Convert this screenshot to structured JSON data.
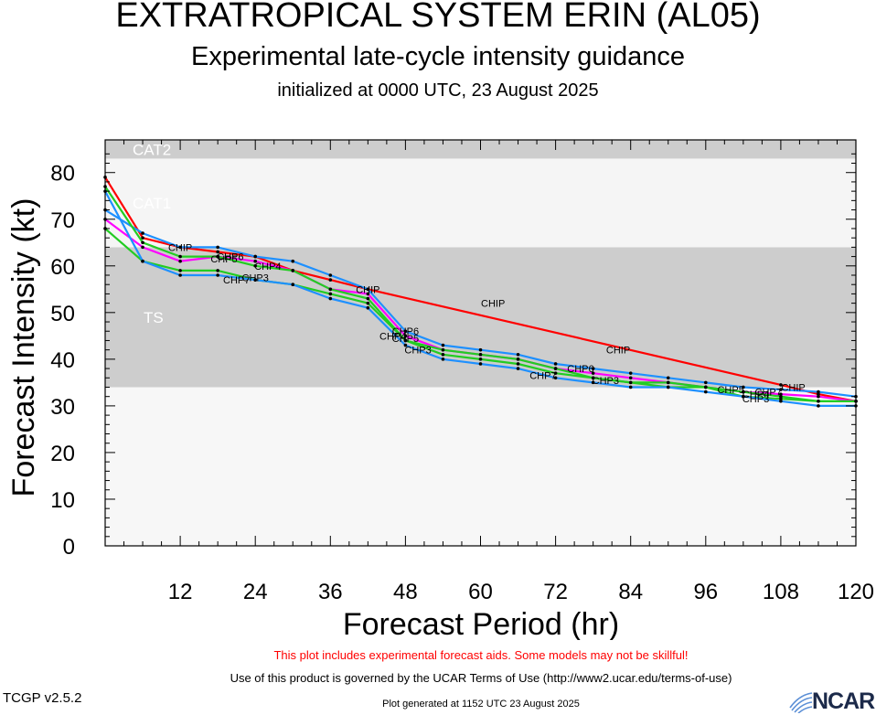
{
  "header": {
    "title": "EXTRATROPICAL SYSTEM ERIN (AL05)",
    "subtitle": "Experimental late-cycle intensity guidance",
    "initialized": "initialized at 0000 UTC, 23 August 2025"
  },
  "footer": {
    "warning": "This plot includes experimental forecast aids. Some models may not be skillful!",
    "terms": "Use of this product is governed by the UCAR Terms of Use (http://www2.ucar.edu/terms-of-use)",
    "version": "TCGP v2.5.2",
    "generated": "Plot generated at 1152 UTC   23 August 2025",
    "logo": "NCAR"
  },
  "chart_data": {
    "type": "line",
    "xlabel": "Forecast Period (hr)",
    "ylabel": "Forecast Intensity (kt)",
    "xlim": [
      0,
      120
    ],
    "ylim": [
      0,
      87
    ],
    "xticks": [
      12,
      24,
      36,
      48,
      60,
      72,
      84,
      96,
      108,
      120
    ],
    "yticks": [
      0,
      10,
      20,
      30,
      40,
      50,
      60,
      70,
      80
    ],
    "bands": [
      {
        "label": "TS",
        "from": 34,
        "to": 64,
        "color": "#cdcdcd"
      },
      {
        "label": "CAT1",
        "from": 64,
        "to": 83,
        "color": "#f5f5f5"
      },
      {
        "label": "CAT2",
        "from": 83,
        "to": 87,
        "color": "#cdcdcd"
      }
    ],
    "series": [
      {
        "name": "CHIP",
        "color": "#ff0000",
        "x": [
          0,
          6,
          12,
          18,
          24,
          30,
          36,
          42,
          108,
          114,
          120
        ],
        "y": [
          79,
          66,
          64,
          63,
          62,
          59,
          57,
          55,
          34.5,
          32.5,
          31
        ]
      },
      {
        "name": "CHP6",
        "color": "#1e90ff",
        "x": [
          0,
          6,
          12,
          18,
          24,
          30,
          36,
          42,
          48,
          54,
          60,
          66,
          72,
          78,
          84,
          90,
          96,
          102,
          108,
          114,
          120
        ],
        "y": [
          72,
          67,
          64,
          64,
          62,
          61,
          58,
          55,
          46,
          43,
          42,
          41,
          39,
          38,
          37,
          36,
          35,
          34,
          33.5,
          33,
          32
        ]
      },
      {
        "name": "CHP5",
        "color": "#ff00ff",
        "x": [
          0,
          6,
          12,
          18,
          24,
          30,
          36,
          42,
          48,
          54,
          60,
          66,
          72,
          78,
          84,
          90,
          96,
          102,
          108,
          114,
          120
        ],
        "y": [
          70,
          64,
          61,
          62,
          61,
          59,
          55,
          54,
          45,
          42,
          41,
          40,
          38,
          37,
          36,
          35,
          34,
          33,
          32.5,
          32,
          31
        ]
      },
      {
        "name": "CHP7",
        "color": "#22cc22",
        "x": [
          0,
          6,
          12,
          18,
          24,
          30,
          36,
          42,
          48,
          54,
          60,
          66,
          72,
          78,
          84,
          90,
          96,
          102,
          108,
          114,
          120
        ],
        "y": [
          68,
          61,
          59,
          59,
          57,
          56,
          54,
          52,
          44,
          41,
          40,
          39,
          37,
          36,
          35,
          34,
          34,
          32,
          31.5,
          31,
          31
        ]
      },
      {
        "name": "CHP3",
        "color": "#1e90ff",
        "x": [
          0,
          6,
          12,
          18,
          24,
          30,
          36,
          42,
          48,
          54,
          60,
          66,
          72,
          78,
          84,
          90,
          96,
          102,
          108,
          114,
          120
        ],
        "y": [
          76,
          61,
          58,
          58,
          57,
          56,
          53,
          51,
          43,
          40,
          39,
          38,
          36,
          35,
          34,
          34,
          33,
          32,
          31,
          30,
          30
        ]
      },
      {
        "name": "CHP4",
        "color": "#22cc22",
        "x": [
          0,
          6,
          12,
          18,
          24,
          30,
          36,
          42,
          48,
          54,
          60,
          66,
          72,
          78,
          84,
          90,
          96,
          102,
          108,
          114,
          120
        ],
        "y": [
          77,
          65,
          62,
          62,
          60,
          59,
          55,
          53,
          44,
          42,
          41,
          40,
          38,
          36,
          35,
          35,
          34,
          33,
          32,
          31,
          31
        ]
      }
    ]
  }
}
